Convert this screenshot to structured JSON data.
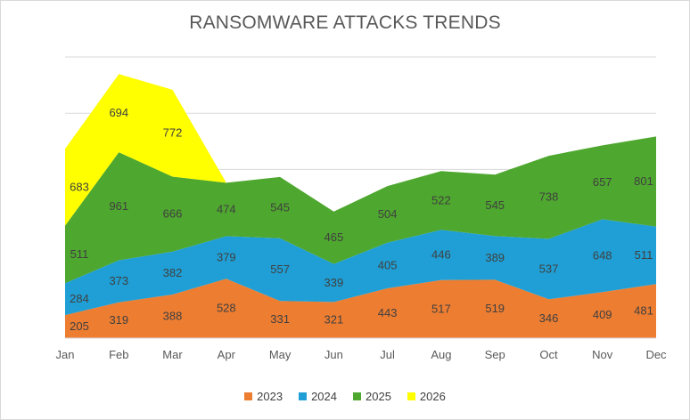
{
  "chart_data": {
    "type": "area",
    "stacked": true,
    "title": "RANSOMWARE ATTACKS TRENDS",
    "categories": [
      "Jan",
      "Feb",
      "Mar",
      "Apr",
      "May",
      "Jun",
      "Jul",
      "Aug",
      "Sep",
      "Oct",
      "Nov",
      "Dec"
    ],
    "series": [
      {
        "name": "2023",
        "color": "#ed7d31",
        "values": [
          205,
          319,
          388,
          528,
          331,
          321,
          443,
          517,
          519,
          346,
          409,
          481
        ]
      },
      {
        "name": "2024",
        "color": "#1f9fd5",
        "values": [
          284,
          373,
          382,
          379,
          557,
          339,
          405,
          446,
          389,
          537,
          648,
          511
        ]
      },
      {
        "name": "2025",
        "color": "#4ea72e",
        "values": [
          511,
          961,
          666,
          474,
          545,
          465,
          504,
          522,
          545,
          738,
          657,
          801
        ]
      },
      {
        "name": "2026",
        "color": "#ffff00",
        "values": [
          683,
          694,
          772,
          null,
          null,
          null,
          null,
          null,
          null,
          null,
          null,
          null
        ]
      }
    ],
    "ylim": [
      0,
      2500
    ],
    "grid": true,
    "legend_position": "bottom"
  }
}
